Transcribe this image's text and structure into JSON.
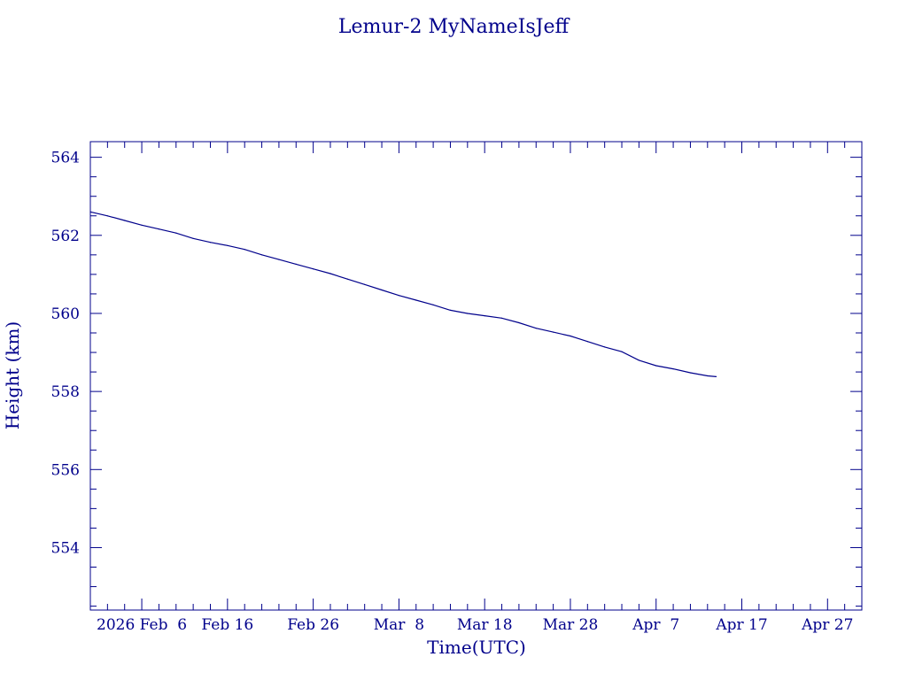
{
  "chart_data": {
    "type": "line",
    "title": "Lemur-2 MyNameIsJeff",
    "xlabel": "Time(UTC)",
    "ylabel": "Height (km)",
    "x_range": [
      "2026-01-31",
      "2026-05-01"
    ],
    "ylim": [
      552.4,
      564.4
    ],
    "x_tick_labels": [
      {
        "date": "2026-02-06",
        "label": "2026 Feb  6"
      },
      {
        "date": "2026-02-16",
        "label": "Feb 16"
      },
      {
        "date": "2026-02-26",
        "label": "Feb 26"
      },
      {
        "date": "2026-03-08",
        "label": "Mar  8"
      },
      {
        "date": "2026-03-18",
        "label": "Mar 18"
      },
      {
        "date": "2026-03-28",
        "label": "Mar 28"
      },
      {
        "date": "2026-04-07",
        "label": "Apr  7"
      },
      {
        "date": "2026-04-17",
        "label": "Apr 17"
      },
      {
        "date": "2026-04-27",
        "label": "Apr 27"
      }
    ],
    "y_ticks": [
      554,
      556,
      558,
      560,
      562,
      564
    ],
    "grid": false,
    "color": "#00008b",
    "series": [
      {
        "points": [
          [
            "2026-01-31",
            562.6
          ],
          [
            "2026-02-02",
            562.5
          ],
          [
            "2026-02-04",
            562.38
          ],
          [
            "2026-02-06",
            562.26
          ],
          [
            "2026-02-08",
            562.16
          ],
          [
            "2026-02-10",
            562.06
          ],
          [
            "2026-02-12",
            561.92
          ],
          [
            "2026-02-14",
            561.82
          ],
          [
            "2026-02-16",
            561.74
          ],
          [
            "2026-02-18",
            561.64
          ],
          [
            "2026-02-20",
            561.5
          ],
          [
            "2026-02-22",
            561.38
          ],
          [
            "2026-02-24",
            561.26
          ],
          [
            "2026-02-26",
            561.14
          ],
          [
            "2026-02-28",
            561.02
          ],
          [
            "2026-03-02",
            560.88
          ],
          [
            "2026-03-04",
            560.74
          ],
          [
            "2026-03-06",
            560.6
          ],
          [
            "2026-03-08",
            560.46
          ],
          [
            "2026-03-10",
            560.34
          ],
          [
            "2026-03-12",
            560.22
          ],
          [
            "2026-03-14",
            560.08
          ],
          [
            "2026-03-16",
            560.0
          ],
          [
            "2026-03-18",
            559.94
          ],
          [
            "2026-03-20",
            559.88
          ],
          [
            "2026-03-22",
            559.76
          ],
          [
            "2026-03-24",
            559.62
          ],
          [
            "2026-03-26",
            559.52
          ],
          [
            "2026-03-28",
            559.42
          ],
          [
            "2026-03-30",
            559.28
          ],
          [
            "2026-04-01",
            559.14
          ],
          [
            "2026-04-03",
            559.02
          ],
          [
            "2026-04-05",
            558.8
          ],
          [
            "2026-04-07",
            558.66
          ],
          [
            "2026-04-09",
            558.58
          ],
          [
            "2026-04-11",
            558.48
          ],
          [
            "2026-04-13",
            558.4
          ],
          [
            "2026-04-14",
            558.38
          ]
        ]
      }
    ]
  }
}
